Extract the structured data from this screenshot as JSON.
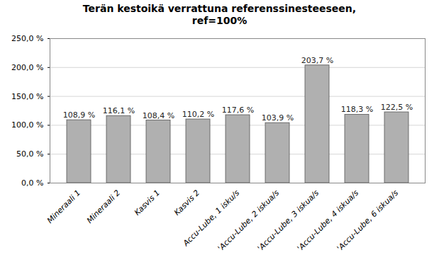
{
  "chart_data": {
    "type": "bar",
    "title": "Terän kestoikä verrattuna referenssinesteeseen,\nref=100%",
    "categories": [
      "Mineraali 1",
      "Mineraali 2",
      "Kasvis 1",
      "Kasvis 2",
      "Accu-Lube, 1 isku/s",
      "'Accu-Lube, 2 iskua/s",
      "'Accu-Lube, 3 iskua/s",
      "'Accu-Lube, 4 iskua/s",
      "'Accu-Lube, 6 iskua/s"
    ],
    "values": [
      108.9,
      116.1,
      108.4,
      110.2,
      117.6,
      103.9,
      203.7,
      118.3,
      122.5
    ],
    "value_labels": [
      "108,9 %",
      "116,1 %",
      "108,4 %",
      "110,2 %",
      "117,6 %",
      "103,9 %",
      "203,7 %",
      "118,3 %",
      "122,5 %"
    ],
    "data_labels": true,
    "color": "#b0b0b0",
    "ylim": [
      0,
      250
    ],
    "yticks": [
      {
        "value": 0,
        "label": "0,0 %"
      },
      {
        "value": 50,
        "label": "50,0 %"
      },
      {
        "value": 100,
        "label": "100,0 %"
      },
      {
        "value": 150,
        "label": "150,0 %"
      },
      {
        "value": 200,
        "label": "200,0 %"
      },
      {
        "value": 250,
        "label": "250,0 %"
      }
    ],
    "grid": true
  }
}
